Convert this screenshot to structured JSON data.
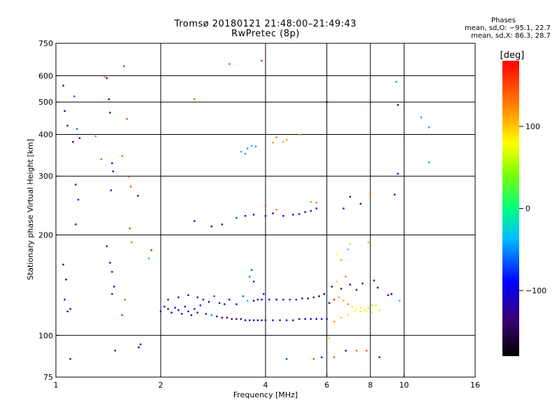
{
  "header": {
    "title": "Tromsø 20180121 21:48:00–21:49:43",
    "subtitle": "RwPretec (8p)",
    "phase_block_title": "Phases",
    "phase_line_o": "mean, sd,O: −95.1, 22.7",
    "phase_line_x": "mean, sd,X: 86.3, 28.7"
  },
  "colorbar": {
    "title": "[deg]",
    "ticks": [
      "100",
      "0",
      "−100"
    ],
    "tick_values": [
      100,
      0,
      -100
    ],
    "range": [
      -180,
      180
    ]
  },
  "chart_data": {
    "type": "scatter",
    "title": "Tromsø 20180121 21:48:00–21:49:43",
    "subtitle": "RwPretec (8p)",
    "xlabel": "Frequency [MHz]",
    "ylabel": "Stationary phase Virtual Height [km]",
    "x_scale": "log2",
    "y_scale": "log",
    "xlim": [
      1,
      16
    ],
    "ylim": [
      75,
      750
    ],
    "grid": true,
    "x_ticks": [
      1,
      2,
      4,
      6,
      8,
      10,
      16
    ],
    "x_tick_labels": [
      "1",
      "2",
      "4",
      "6",
      "8",
      "10",
      "16"
    ],
    "y_ticks": [
      75,
      100,
      200,
      300,
      400,
      500,
      600,
      750
    ],
    "y_tick_labels": [
      "75",
      "100",
      "200",
      "300",
      "400",
      "500",
      "600",
      "750"
    ],
    "grid_x": [
      2,
      4,
      6,
      8,
      10
    ],
    "grid_y": [
      100,
      200,
      300,
      400,
      500,
      600
    ],
    "color_mapping": "phase_deg",
    "points": [
      [
        1.05,
        560,
        -120
      ],
      [
        1.06,
        470,
        -115
      ],
      [
        1.08,
        425,
        -125
      ],
      [
        1.05,
        163,
        -120
      ],
      [
        1.07,
        147,
        -110
      ],
      [
        1.06,
        128,
        -95
      ],
      [
        1.08,
        118,
        -120
      ],
      [
        1.1,
        85,
        -120
      ],
      [
        1.13,
        520,
        -80
      ],
      [
        1.15,
        415,
        -70
      ],
      [
        1.17,
        390,
        -110
      ],
      [
        1.12,
        380,
        -120
      ],
      [
        1.14,
        283,
        -125
      ],
      [
        1.16,
        255,
        -95
      ],
      [
        1.14,
        215,
        -120
      ],
      [
        1.3,
        395,
        130
      ],
      [
        1.35,
        337,
        150
      ],
      [
        1.38,
        595,
        120
      ],
      [
        1.4,
        590,
        -110
      ],
      [
        1.42,
        510,
        -110
      ],
      [
        1.43,
        465,
        -120
      ],
      [
        1.45,
        328,
        -120
      ],
      [
        1.46,
        310,
        -120
      ],
      [
        1.44,
        272,
        -110
      ],
      [
        1.4,
        185,
        -130
      ],
      [
        1.43,
        165,
        -120
      ],
      [
        1.45,
        155,
        -110
      ],
      [
        1.47,
        140,
        -110
      ],
      [
        1.45,
        133,
        -120
      ],
      [
        1.48,
        90,
        -110
      ],
      [
        1.55,
        345,
        140
      ],
      [
        1.57,
        640,
        170
      ],
      [
        1.6,
        445,
        150
      ],
      [
        1.62,
        299,
        160
      ],
      [
        1.64,
        279,
        150
      ],
      [
        1.63,
        209,
        160
      ],
      [
        1.65,
        190,
        130
      ],
      [
        1.55,
        115,
        170
      ],
      [
        1.58,
        128,
        140
      ],
      [
        1.72,
        262,
        -110
      ],
      [
        1.75,
        94,
        -100
      ],
      [
        1.73,
        92,
        -120
      ],
      [
        1.85,
        170,
        -50
      ],
      [
        1.88,
        180,
        170
      ],
      [
        2.0,
        118,
        -120
      ],
      [
        2.05,
        122,
        -115
      ],
      [
        2.1,
        120,
        -125
      ],
      [
        2.15,
        117,
        -110
      ],
      [
        2.2,
        121,
        -115
      ],
      [
        2.25,
        119,
        -120
      ],
      [
        2.3,
        116,
        -125
      ],
      [
        2.35,
        122,
        -110
      ],
      [
        2.4,
        118,
        -120
      ],
      [
        2.45,
        115,
        -125
      ],
      [
        2.5,
        120,
        -115
      ],
      [
        2.55,
        117,
        -120
      ],
      [
        2.6,
        123,
        -110
      ],
      [
        2.7,
        116,
        -120
      ],
      [
        2.8,
        115,
        -60
      ],
      [
        2.9,
        114,
        -150
      ],
      [
        3.0,
        113,
        -150
      ],
      [
        3.1,
        113,
        -145
      ],
      [
        3.2,
        112,
        -140
      ],
      [
        3.3,
        112,
        -150
      ],
      [
        3.4,
        112,
        -140
      ],
      [
        3.5,
        111,
        -130
      ],
      [
        3.6,
        111,
        -120
      ],
      [
        3.7,
        111,
        -125
      ],
      [
        3.8,
        111,
        -120
      ],
      [
        3.9,
        111,
        -115
      ],
      [
        4.0,
        111,
        -120
      ],
      [
        4.2,
        111,
        -125
      ],
      [
        4.4,
        111,
        -120
      ],
      [
        4.6,
        111,
        -110
      ],
      [
        4.8,
        111,
        -115
      ],
      [
        5.0,
        112,
        -120
      ],
      [
        5.2,
        112,
        -120
      ],
      [
        5.4,
        112,
        -115
      ],
      [
        5.6,
        112,
        -110
      ],
      [
        5.8,
        112,
        -120
      ],
      [
        6.0,
        112,
        -110
      ],
      [
        2.1,
        128,
        -120
      ],
      [
        2.25,
        130,
        -115
      ],
      [
        2.4,
        132,
        -110
      ],
      [
        2.55,
        130,
        -120
      ],
      [
        2.65,
        128,
        -110
      ],
      [
        2.75,
        126,
        -105
      ],
      [
        2.85,
        131,
        -80
      ],
      [
        2.95,
        125,
        -120
      ],
      [
        3.05,
        124,
        -125
      ],
      [
        3.15,
        128,
        -110
      ],
      [
        3.3,
        124,
        -120
      ],
      [
        3.45,
        131,
        -70
      ],
      [
        3.55,
        127,
        -50
      ],
      [
        3.6,
        150,
        -70
      ],
      [
        3.65,
        157,
        -80
      ],
      [
        3.7,
        145,
        -110
      ],
      [
        3.8,
        128,
        -120
      ],
      [
        3.95,
        133,
        -110
      ],
      [
        3.7,
        127,
        -110
      ],
      [
        3.9,
        128,
        -115
      ],
      [
        4.1,
        128,
        -120
      ],
      [
        4.3,
        128,
        -125
      ],
      [
        4.5,
        128,
        -120
      ],
      [
        4.7,
        128,
        -115
      ],
      [
        4.9,
        128,
        -110
      ],
      [
        5.1,
        129,
        -120
      ],
      [
        5.3,
        129,
        -130
      ],
      [
        5.5,
        130,
        -140
      ],
      [
        5.7,
        131,
        -150
      ],
      [
        5.9,
        133,
        -160
      ],
      [
        6.1,
        125,
        -150
      ],
      [
        6.3,
        128,
        160
      ],
      [
        6.5,
        130,
        120
      ],
      [
        6.7,
        127,
        110
      ],
      [
        6.9,
        124,
        120
      ],
      [
        7.1,
        122,
        90
      ],
      [
        7.3,
        120,
        80
      ],
      [
        7.5,
        118,
        60
      ],
      [
        7.7,
        119,
        70
      ],
      [
        7.9,
        121,
        60
      ],
      [
        8.1,
        123,
        50
      ],
      [
        6.2,
        140,
        -130
      ],
      [
        6.4,
        145,
        100
      ],
      [
        6.6,
        138,
        -140
      ],
      [
        6.8,
        150,
        130
      ],
      [
        7.0,
        142,
        -150
      ],
      [
        7.3,
        137,
        -120
      ],
      [
        7.6,
        143,
        -150
      ],
      [
        8.2,
        146,
        -140
      ],
      [
        8.4,
        139,
        -125
      ],
      [
        6.4,
        175,
        80
      ],
      [
        6.6,
        168,
        110
      ],
      [
        6.9,
        181,
        -20
      ],
      [
        7.0,
        188,
        60
      ],
      [
        7.9,
        190,
        30
      ],
      [
        6.3,
        110,
        120
      ],
      [
        6.6,
        113,
        100
      ],
      [
        6.9,
        115,
        90
      ],
      [
        7.2,
        118,
        80
      ],
      [
        7.5,
        121,
        70
      ],
      [
        7.8,
        118,
        80
      ],
      [
        8.1,
        117,
        70
      ],
      [
        8.3,
        123,
        60
      ],
      [
        8.5,
        119,
        70
      ],
      [
        2.5,
        220,
        -120
      ],
      [
        2.8,
        212,
        -150
      ],
      [
        3.0,
        215,
        -130
      ],
      [
        3.3,
        225,
        -80
      ],
      [
        3.5,
        228,
        -110
      ],
      [
        3.7,
        230,
        -120
      ],
      [
        4.0,
        228,
        -120
      ],
      [
        4.2,
        232,
        -115
      ],
      [
        4.5,
        228,
        -120
      ],
      [
        4.8,
        230,
        -110
      ],
      [
        5.0,
        231,
        -120
      ],
      [
        5.2,
        234,
        -130
      ],
      [
        5.4,
        236,
        -110
      ],
      [
        5.6,
        240,
        -110
      ],
      [
        5.6,
        250,
        130
      ],
      [
        4.3,
        238,
        130
      ],
      [
        4.0,
        245,
        150
      ],
      [
        5.4,
        251,
        120
      ],
      [
        3.4,
        355,
        -50
      ],
      [
        3.55,
        363,
        -60
      ],
      [
        3.65,
        370,
        -50
      ],
      [
        3.75,
        368,
        -60
      ],
      [
        4.2,
        378,
        120
      ],
      [
        4.5,
        380,
        110
      ],
      [
        4.3,
        392,
        130
      ],
      [
        4.6,
        385,
        120
      ],
      [
        5.0,
        398,
        90
      ],
      [
        3.5,
        350,
        -60
      ],
      [
        3.15,
        650,
        150
      ],
      [
        3.9,
        665,
        160
      ],
      [
        6.0,
        500,
        -120
      ],
      [
        9.5,
        575,
        -60
      ],
      [
        9.6,
        490,
        -110
      ],
      [
        11.2,
        450,
        -60
      ],
      [
        11.8,
        420,
        -60
      ],
      [
        11.8,
        330,
        -60
      ],
      [
        9.6,
        305,
        -120
      ],
      [
        9.4,
        264,
        -110
      ],
      [
        7.5,
        248,
        -120
      ],
      [
        6.7,
        240,
        -110
      ],
      [
        8.0,
        265,
        140
      ],
      [
        7.0,
        260,
        -120
      ],
      [
        4.6,
        85,
        -80
      ],
      [
        5.5,
        85,
        150
      ],
      [
        5.8,
        86,
        -120
      ],
      [
        6.3,
        86,
        140
      ],
      [
        6.8,
        90,
        -100
      ],
      [
        7.3,
        90,
        140
      ],
      [
        7.8,
        90,
        150
      ],
      [
        8.5,
        86,
        -120
      ],
      [
        9.7,
        127,
        -50
      ],
      [
        9.0,
        132,
        -110
      ],
      [
        9.2,
        133,
        -100
      ],
      [
        6.1,
        98,
        100
      ],
      [
        2.5,
        510,
        140
      ],
      [
        1.1,
        120,
        -120
      ]
    ]
  },
  "axes": {
    "xlabel": "Frequency [MHz]",
    "ylabel": "Stationary phase Virtual Height [km]"
  }
}
